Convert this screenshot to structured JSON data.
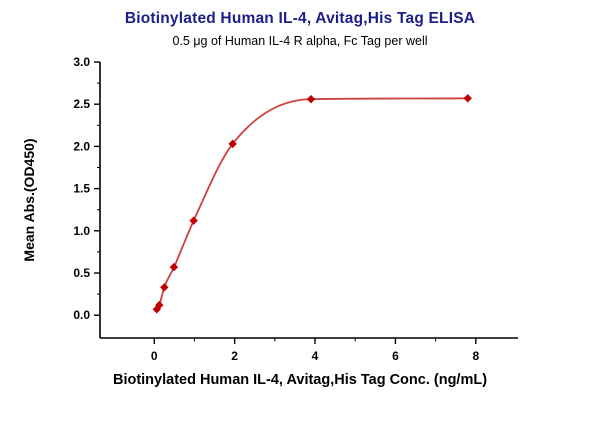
{
  "chart_data": {
    "type": "scatter",
    "title": "Biotinylated Human IL-4, Avitag,His Tag ELISA",
    "subtitle": "0.5 μg of Human IL-4 R alpha, Fc Tag per well",
    "xlabel": "Biotinylated Human IL-4, Avitag,His Tag Conc. (ng/mL)",
    "ylabel": "Mean Abs.(OD450)",
    "x": [
      0.0625,
      0.125,
      0.25,
      0.49,
      0.98,
      1.95,
      3.9,
      7.8
    ],
    "y": [
      0.07,
      0.12,
      0.33,
      0.57,
      1.12,
      2.03,
      2.56,
      2.57
    ],
    "fit": "smooth sigmoidal (4PL-style) curve through points",
    "xlim": [
      -1.35,
      9.05
    ],
    "ylim_axis": [
      -0.27,
      3.0
    ],
    "x_major_ticks": [
      0,
      2,
      4,
      6,
      8
    ],
    "x_tick_labels": [
      "0",
      "2",
      "4",
      "6",
      "8"
    ],
    "x_minor_ticks": [
      1,
      3,
      5,
      7
    ],
    "y_major_ticks": [
      0.0,
      0.5,
      1.0,
      1.5,
      2.0,
      2.5,
      3.0
    ],
    "y_tick_labels": [
      "0.0",
      "0.5",
      "1.0",
      "1.5",
      "2.0",
      "2.5",
      "3.0"
    ],
    "grid": "off",
    "legend": "none",
    "colors": {
      "title": "#1d2088",
      "curve": "#d04040",
      "marker": "#c00000",
      "axis": "#000000"
    }
  }
}
